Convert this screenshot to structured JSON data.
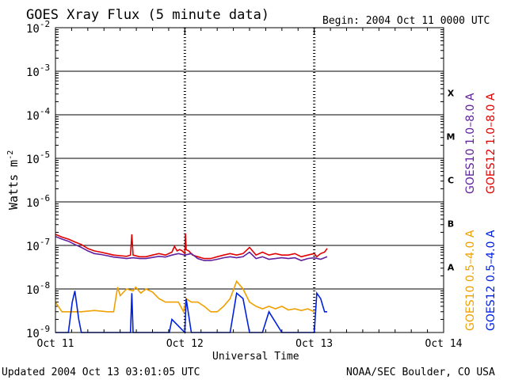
{
  "chart_data": {
    "type": "line",
    "title": "GOES Xray Flux (5 minute data)",
    "begin_label": "Begin:  2004 Oct 11 0000 UTC",
    "ylabel_base": "Watts m",
    "ylabel_exp": "-2",
    "xlabel": "Universal Time",
    "y_scale": "log",
    "ylim": [
      1e-09,
      0.01
    ],
    "xlim_days": [
      0,
      3
    ],
    "x_ticks": [
      {
        "day": 0,
        "label": "Oct 11"
      },
      {
        "day": 1,
        "label": "Oct 12"
      },
      {
        "day": 2,
        "label": "Oct 13"
      },
      {
        "day": 3,
        "label": "Oct 14"
      }
    ],
    "y_ticks": [
      {
        "value": 1e-09,
        "label": "10",
        "exp": "-9"
      },
      {
        "value": 1e-08,
        "label": "10",
        "exp": "-8"
      },
      {
        "value": 1e-07,
        "label": "10",
        "exp": "-7"
      },
      {
        "value": 1e-06,
        "label": "10",
        "exp": "-6"
      },
      {
        "value": 1e-05,
        "label": "10",
        "exp": "-5"
      },
      {
        "value": 0.0001,
        "label": "10",
        "exp": "-4"
      },
      {
        "value": 0.001,
        "label": "10",
        "exp": "-3"
      },
      {
        "value": 0.01,
        "label": "10",
        "exp": "-2"
      }
    ],
    "flare_classes": [
      {
        "label": "X",
        "low": 0.0001,
        "high": 0.001
      },
      {
        "label": "M",
        "low": 1e-05,
        "high": 0.0001
      },
      {
        "label": "C",
        "low": 1e-06,
        "high": 1e-05
      },
      {
        "label": "B",
        "low": 1e-07,
        "high": 1e-06
      },
      {
        "label": "A",
        "low": 1e-08,
        "high": 1e-07
      }
    ],
    "series": [
      {
        "name": "GOES12 1.0-8.0 A",
        "color": "#e00000",
        "x": [
          0,
          0.05,
          0.1,
          0.15,
          0.2,
          0.25,
          0.3,
          0.35,
          0.4,
          0.45,
          0.5,
          0.55,
          0.58,
          0.59,
          0.6,
          0.65,
          0.7,
          0.75,
          0.8,
          0.85,
          0.9,
          0.92,
          0.94,
          0.96,
          0.98,
          1.0,
          1.005,
          1.01,
          1.03,
          1.06,
          1.1,
          1.15,
          1.2,
          1.25,
          1.3,
          1.35,
          1.4,
          1.45,
          1.5,
          1.55,
          1.6,
          1.65,
          1.7,
          1.75,
          1.8,
          1.85,
          1.9,
          1.95,
          2.0,
          2.02,
          2.05,
          2.08,
          2.1
        ],
        "y": [
          1.8e-07,
          1.55e-07,
          1.4e-07,
          1.2e-07,
          1.05e-07,
          8.5e-08,
          7.5e-08,
          7e-08,
          6.5e-08,
          6e-08,
          5.8e-08,
          5.6e-08,
          6e-08,
          1.8e-07,
          6e-08,
          5.5e-08,
          5.5e-08,
          6e-08,
          6.5e-08,
          6e-08,
          7e-08,
          9.5e-08,
          7.5e-08,
          8e-08,
          7.5e-08,
          6.5e-08,
          1.9e-07,
          8e-08,
          7.5e-08,
          6e-08,
          5.5e-08,
          5e-08,
          5e-08,
          5.5e-08,
          6e-08,
          6.5e-08,
          6e-08,
          6.5e-08,
          9e-08,
          6e-08,
          7e-08,
          6e-08,
          6.5e-08,
          6e-08,
          6e-08,
          6.5e-08,
          5.5e-08,
          6e-08,
          6.5e-08,
          5.5e-08,
          6.5e-08,
          7e-08,
          8.5e-08
        ]
      },
      {
        "name": "GOES10 1.0-8.0 A",
        "color": "#6020a0",
        "x": [
          0,
          0.05,
          0.1,
          0.15,
          0.2,
          0.25,
          0.3,
          0.35,
          0.4,
          0.45,
          0.5,
          0.55,
          0.6,
          0.65,
          0.7,
          0.75,
          0.8,
          0.85,
          0.9,
          0.95,
          1.0,
          1.05,
          1.1,
          1.15,
          1.2,
          1.25,
          1.3,
          1.35,
          1.4,
          1.45,
          1.5,
          1.55,
          1.6,
          1.65,
          1.7,
          1.75,
          1.8,
          1.85,
          1.9,
          1.95,
          2.0,
          2.05,
          2.1
        ],
        "y": [
          1.6e-07,
          1.4e-07,
          1.25e-07,
          1.05e-07,
          9e-08,
          7.5e-08,
          6.5e-08,
          6.2e-08,
          5.8e-08,
          5.4e-08,
          5.2e-08,
          5e-08,
          5.2e-08,
          5e-08,
          5e-08,
          5.3e-08,
          5.6e-08,
          5.4e-08,
          6e-08,
          6.5e-08,
          6e-08,
          6.5e-08,
          5e-08,
          4.5e-08,
          4.5e-08,
          4.8e-08,
          5.2e-08,
          5.5e-08,
          5.2e-08,
          5.5e-08,
          7e-08,
          5e-08,
          5.5e-08,
          4.8e-08,
          5e-08,
          5.2e-08,
          5e-08,
          5.2e-08,
          4.5e-08,
          5e-08,
          5.2e-08,
          4.8e-08,
          5.5e-08
        ]
      },
      {
        "name": "GOES10 0.5-4.0 A",
        "color": "#f0a000",
        "x": [
          0,
          0.05,
          0.1,
          0.15,
          0.2,
          0.3,
          0.4,
          0.45,
          0.48,
          0.5,
          0.55,
          0.6,
          0.62,
          0.66,
          0.7,
          0.75,
          0.8,
          0.85,
          0.9,
          0.95,
          0.99,
          1.01,
          1.05,
          1.1,
          1.15,
          1.2,
          1.25,
          1.3,
          1.35,
          1.4,
          1.45,
          1.5,
          1.55,
          1.6,
          1.65,
          1.7,
          1.75,
          1.8,
          1.85,
          1.9,
          1.95,
          2.0
        ],
        "y": [
          5e-09,
          3e-09,
          3e-09,
          3e-09,
          3e-09,
          3.2e-09,
          3e-09,
          3e-09,
          1.1e-08,
          7e-09,
          1e-08,
          9e-09,
          1.1e-08,
          8e-09,
          1e-08,
          8.5e-09,
          6e-09,
          5e-09,
          5e-09,
          5e-09,
          3e-09,
          6e-09,
          5e-09,
          5e-09,
          4e-09,
          3e-09,
          3e-09,
          4e-09,
          6e-09,
          1.5e-08,
          1e-08,
          5e-09,
          4e-09,
          3.5e-09,
          4e-09,
          3.5e-09,
          4e-09,
          3.3e-09,
          3.5e-09,
          3.2e-09,
          3.5e-09,
          3e-09
        ]
      },
      {
        "name": "GOES12 0.5-4.0 A",
        "color": "#0020e0",
        "x": [
          0,
          0.05,
          0.1,
          0.13,
          0.15,
          0.18,
          0.2,
          0.3,
          0.4,
          0.5,
          0.55,
          0.58,
          0.59,
          0.6,
          0.65,
          0.7,
          0.8,
          0.88,
          0.9,
          1.0,
          1.01,
          1.05,
          1.15,
          1.2,
          1.3,
          1.35,
          1.4,
          1.45,
          1.5,
          1.6,
          1.65,
          1.75,
          1.8,
          1.9,
          2.0,
          2.02,
          2.05,
          2.08,
          2.1
        ],
        "y": [
          1e-09,
          1e-09,
          1e-09,
          5e-09,
          9e-09,
          2e-09,
          1e-09,
          1e-09,
          1e-09,
          1e-09,
          1e-09,
          1e-09,
          8e-09,
          1e-09,
          1e-09,
          1e-09,
          1e-09,
          1e-09,
          2e-09,
          1e-09,
          6e-09,
          1e-09,
          1e-09,
          1e-09,
          1e-09,
          1e-09,
          8e-09,
          6e-09,
          1e-09,
          1e-09,
          3e-09,
          1e-09,
          1e-09,
          1e-09,
          1e-09,
          8e-09,
          6e-09,
          3e-09,
          3e-09
        ]
      }
    ]
  },
  "legend_right": [
    {
      "name": "GOES10 1.0–8.0 A",
      "color": "#6020a0"
    },
    {
      "name": "GOES12 1.0–8.0 A",
      "color": "#e00000"
    },
    {
      "name": "GOES10 0.5–4.0 A",
      "color": "#f0a000"
    },
    {
      "name": "GOES12 0.5–4.0 A",
      "color": "#0020e0"
    }
  ],
  "footer": {
    "updated": "Updated 2004 Oct 13 03:01:05 UTC",
    "credit": "NOAA/SEC Boulder, CO USA"
  }
}
